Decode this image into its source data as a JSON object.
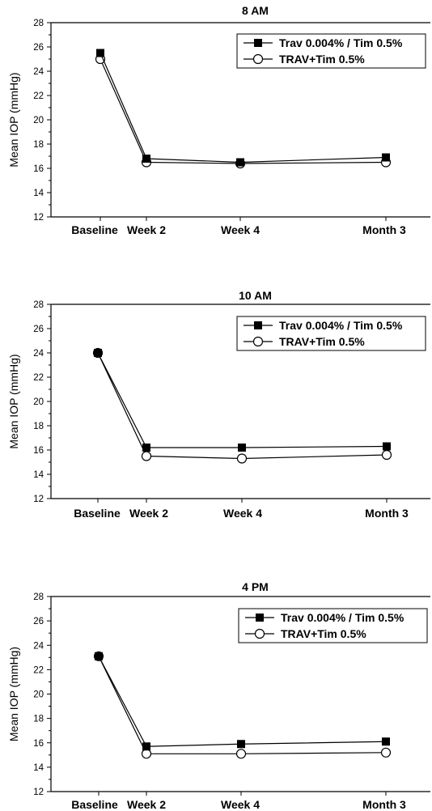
{
  "chart_data": [
    {
      "type": "line",
      "title": "8 AM",
      "xlabel": "",
      "ylabel": "Mean IOP (mmHg)",
      "categories": [
        "Baseline",
        "Week 2",
        "Week 4",
        "Month 3"
      ],
      "ylim": [
        12,
        28
      ],
      "yticks": [
        12,
        14,
        16,
        18,
        20,
        22,
        24,
        26,
        28
      ],
      "grid": false,
      "legend_position": "top-right",
      "series": [
        {
          "name": "Trav 0.004% / Tim 0.5%",
          "marker": "filled-square",
          "values": [
            25.5,
            16.8,
            16.5,
            16.9
          ]
        },
        {
          "name": "TRAV+Tim 0.5%",
          "marker": "open-circle",
          "values": [
            25.0,
            16.5,
            16.4,
            16.5
          ]
        }
      ]
    },
    {
      "type": "line",
      "title": "10 AM",
      "xlabel": "",
      "ylabel": "Mean IOP (mmHg)",
      "categories": [
        "Baseline",
        "Week 2",
        "Week 4",
        "Month 3"
      ],
      "ylim": [
        12,
        28
      ],
      "yticks": [
        12,
        14,
        16,
        18,
        20,
        22,
        24,
        26,
        28
      ],
      "grid": false,
      "legend_position": "top-right",
      "series": [
        {
          "name": "Trav 0.004% / Tim 0.5%",
          "marker": "filled-square",
          "values": [
            24.0,
            16.2,
            16.2,
            16.3
          ]
        },
        {
          "name": "TRAV+Tim 0.5%",
          "marker": "open-circle",
          "values": [
            24.0,
            15.5,
            15.3,
            15.6
          ]
        }
      ]
    },
    {
      "type": "line",
      "title": "4 PM",
      "xlabel": "",
      "ylabel": "Mean IOP (mmHg)",
      "categories": [
        "Baseline",
        "Week 2",
        "Week 4",
        "Month 3"
      ],
      "ylim": [
        12,
        28
      ],
      "yticks": [
        12,
        14,
        16,
        18,
        20,
        22,
        24,
        26,
        28
      ],
      "grid": false,
      "legend_position": "top-right",
      "series": [
        {
          "name": "Trav 0.004% / Tim 0.5%",
          "marker": "filled-square",
          "values": [
            23.1,
            15.7,
            15.9,
            16.1
          ]
        },
        {
          "name": "TRAV+Tim 0.5%",
          "marker": "open-circle",
          "values": [
            23.1,
            15.1,
            15.1,
            15.2
          ]
        }
      ]
    }
  ],
  "colors": {
    "line": "#000000",
    "filled_marker": "#000000",
    "open_marker_fill": "#ffffff"
  }
}
